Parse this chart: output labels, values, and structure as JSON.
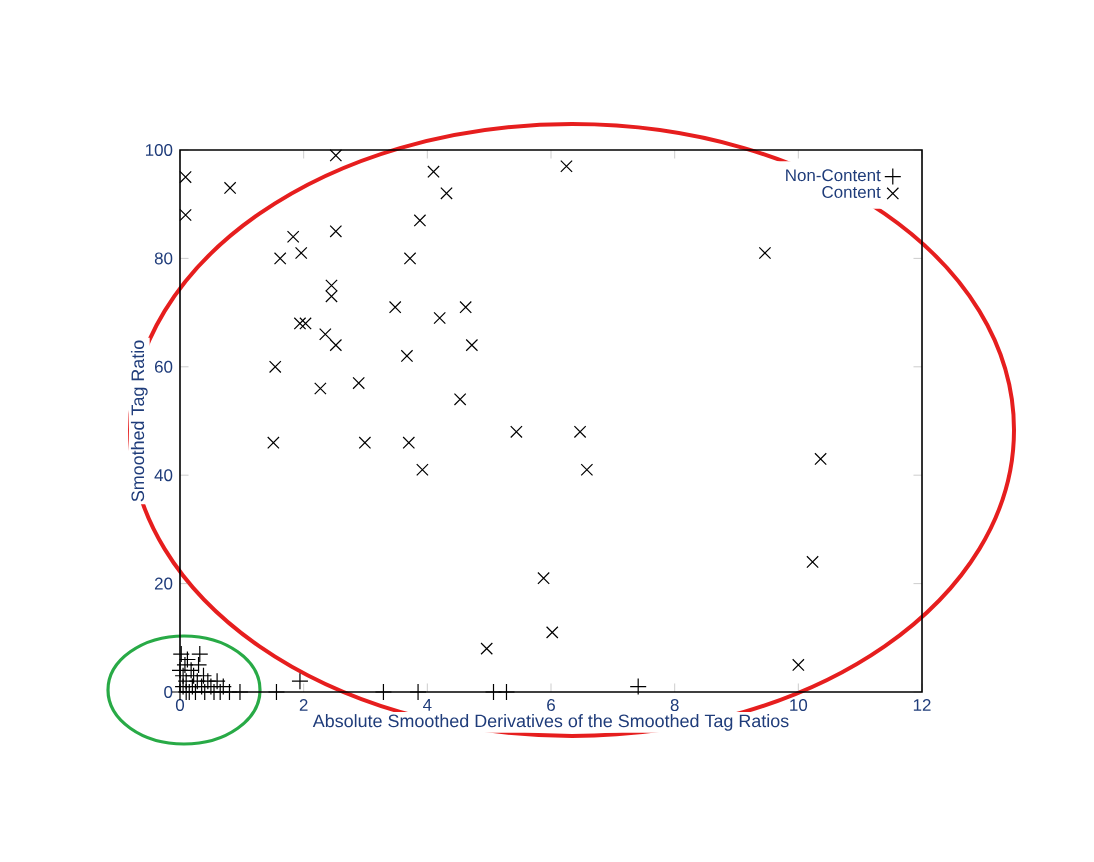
{
  "chart_data": {
    "type": "scatter",
    "xlabel": "Absolute Smoothed Derivatives of the Smoothed Tag Ratios",
    "ylabel": "Smoothed Tag Ratio",
    "xlim": [
      0,
      12
    ],
    "ylim": [
      0,
      100
    ],
    "xticks": [
      0,
      2,
      4,
      6,
      8,
      10,
      12
    ],
    "yticks": [
      0,
      20,
      40,
      60,
      80,
      100
    ],
    "legend": "top right",
    "series": [
      {
        "name": "Non-Content",
        "color": "#000000",
        "marker": "plus",
        "x": [
          0,
          0.05,
          0.05,
          0.08,
          0.1,
          0.12,
          0.15,
          0.18,
          0.2,
          0.22,
          0.25,
          0.28,
          0.3,
          0.32,
          0.35,
          0.38,
          0.4,
          0.45,
          0.5,
          0.55,
          0.6,
          0.65,
          0.7,
          0.8,
          0.02,
          0.1,
          0,
          0.97,
          1.56,
          1.94,
          3.29,
          3.85,
          5.07,
          5.28,
          7.41
        ],
        "values": [
          0,
          1,
          3,
          5,
          2,
          6,
          0,
          4,
          1,
          3,
          0,
          2,
          5,
          7,
          1,
          3,
          0,
          2,
          1,
          0,
          2,
          0,
          1,
          0,
          7,
          0,
          4,
          0,
          0,
          2,
          0,
          0,
          0,
          0,
          1
        ]
      },
      {
        "name": "Content",
        "color": "#000000",
        "marker": "cross",
        "x": [
          0.09,
          0.09,
          0.81,
          2.52,
          4.1,
          4.31,
          3.88,
          1.83,
          2.52,
          1.62,
          1.96,
          3.72,
          2.45,
          2.45,
          1.94,
          2.03,
          2.35,
          2.52,
          3.48,
          4.2,
          4.62,
          4.72,
          1.54,
          3.67,
          2.27,
          2.89,
          4.53,
          5.44,
          1.51,
          2.99,
          3.7,
          3.92,
          4.96,
          5.88,
          6.02,
          6.47,
          6.58,
          10.36,
          10.23,
          10.0,
          6.25,
          9.46
        ],
        "values": [
          95,
          88,
          93,
          99,
          96,
          92,
          87,
          84,
          85,
          80,
          81,
          80,
          75,
          73,
          68,
          68,
          66,
          64,
          71,
          69,
          71,
          64,
          60,
          62,
          56,
          57,
          54,
          48,
          46,
          46,
          46,
          41,
          8,
          21,
          11,
          48,
          41,
          43,
          24,
          5,
          97,
          81
        ]
      }
    ]
  }
}
